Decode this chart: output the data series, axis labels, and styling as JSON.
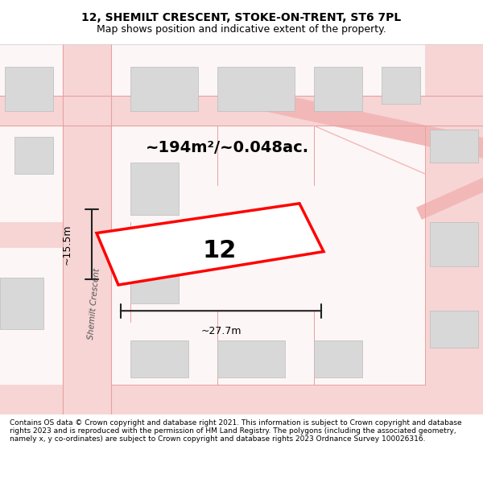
{
  "title_line1": "12, SHEMILT CRESCENT, STOKE-ON-TRENT, ST6 7PL",
  "title_line2": "Map shows position and indicative extent of the property.",
  "footer_text": "Contains OS data © Crown copyright and database right 2021. This information is subject to Crown copyright and database rights 2023 and is reproduced with the permission of HM Land Registry. The polygons (including the associated geometry, namely x, y co-ordinates) are subject to Crown copyright and database rights 2023 Ordnance Survey 100026316.",
  "area_label": "~194m²/~0.048ac.",
  "width_label": "~27.7m",
  "height_label": "~15.5m",
  "plot_number": "12",
  "background_color": "#ffffff",
  "map_bg_color": "#f9f0f0",
  "building_color": "#e0e0e0",
  "road_color": "#f5c8c8",
  "plot_outline_color": "#ff0000",
  "plot_fill_color": "#ffffff",
  "dim_line_color": "#222222",
  "street_label": "Shemilt Crescent"
}
